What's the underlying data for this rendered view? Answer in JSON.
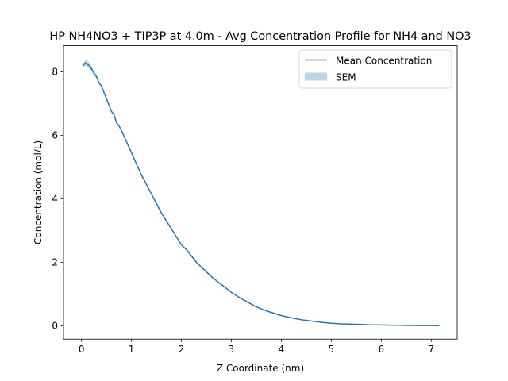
{
  "chart_data": {
    "type": "line",
    "title": "HP NH4NO3 + TIP3P at 4.0m - Avg Concentration Profile for NH4 and NO3",
    "xlabel": "Z Coordinate (nm)",
    "ylabel": "Concentration (mol/L)",
    "xlim": [
      -0.36,
      7.52
    ],
    "ylim": [
      -0.42,
      8.82
    ],
    "xticks": [
      0,
      1,
      2,
      3,
      4,
      5,
      6,
      7
    ],
    "yticks": [
      0,
      2,
      4,
      6,
      8
    ],
    "grid": false,
    "legend_position": "top-right",
    "legend": [
      "Mean Concentration",
      "SEM"
    ],
    "series": [
      {
        "name": "Mean Concentration",
        "color": "#1f77b4",
        "x": [
          0.03,
          0.08,
          0.15,
          0.2,
          0.25,
          0.3,
          0.35,
          0.4,
          0.45,
          0.5,
          0.55,
          0.6,
          0.65,
          0.7,
          0.75,
          0.8,
          0.9,
          1.0,
          1.1,
          1.2,
          1.3,
          1.4,
          1.5,
          1.6,
          1.7,
          1.8,
          1.9,
          2.0,
          2.1,
          2.2,
          2.3,
          2.4,
          2.5,
          2.6,
          2.7,
          2.8,
          2.9,
          3.0,
          3.1,
          3.2,
          3.3,
          3.4,
          3.5,
          3.6,
          3.7,
          3.8,
          3.9,
          4.0,
          4.2,
          4.4,
          4.6,
          4.8,
          5.0,
          5.2,
          5.4,
          5.6,
          5.8,
          6.0,
          6.2,
          6.4,
          6.6,
          6.8,
          7.0,
          7.15
        ],
        "y": [
          8.2,
          8.28,
          8.2,
          8.1,
          7.95,
          7.85,
          7.65,
          7.55,
          7.35,
          7.15,
          6.95,
          6.75,
          6.65,
          6.4,
          6.3,
          6.15,
          5.8,
          5.45,
          5.1,
          4.75,
          4.45,
          4.15,
          3.85,
          3.55,
          3.3,
          3.05,
          2.8,
          2.55,
          2.4,
          2.2,
          2.0,
          1.85,
          1.7,
          1.55,
          1.42,
          1.3,
          1.18,
          1.05,
          0.95,
          0.85,
          0.77,
          0.68,
          0.6,
          0.53,
          0.47,
          0.42,
          0.37,
          0.32,
          0.25,
          0.19,
          0.15,
          0.11,
          0.08,
          0.06,
          0.05,
          0.04,
          0.03,
          0.025,
          0.02,
          0.015,
          0.01,
          0.008,
          0.006,
          0.005
        ]
      },
      {
        "name": "SEM",
        "color": "#1f77b4",
        "x": [
          0.03,
          0.08,
          0.15,
          0.2,
          0.25,
          0.3,
          0.35,
          0.4
        ],
        "y_low": [
          8.15,
          8.18,
          8.1,
          8.03,
          7.9,
          7.8,
          7.62,
          7.53
        ],
        "y_high": [
          8.27,
          8.38,
          8.3,
          8.17,
          8.0,
          7.9,
          7.68,
          7.57
        ]
      }
    ]
  }
}
